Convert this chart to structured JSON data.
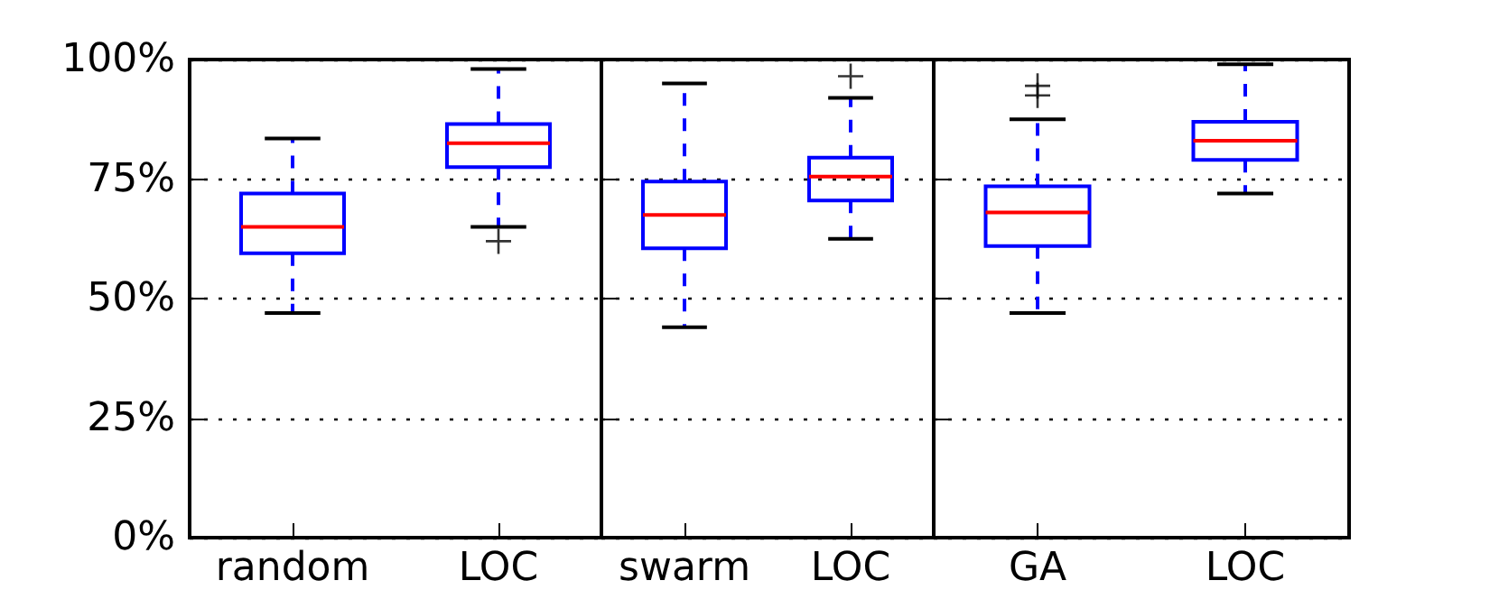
{
  "chart_data": [
    {
      "type": "box",
      "categories": [
        "random",
        "LOC"
      ],
      "ylim": [
        0,
        100
      ],
      "yticks": [
        {
          "value": 0,
          "label": "0%"
        },
        {
          "value": 25,
          "label": "25%"
        },
        {
          "value": 50,
          "label": "50%"
        },
        {
          "value": 75,
          "label": "75%"
        },
        {
          "value": 100,
          "label": "100%"
        }
      ],
      "grid": "y",
      "marker": "cross",
      "series": [
        {
          "color": "#0000ff",
          "boxes": [
            {
              "low": 47,
              "q1": 59.5,
              "median": 65,
              "q3": 72,
              "high": 83.5
            },
            {
              "low": 65,
              "q1": 77.5,
              "median": 82.5,
              "q3": 86.5,
              "high": 98,
              "outliers": [
                62
              ]
            }
          ]
        }
      ]
    },
    {
      "type": "box",
      "categories": [
        "swarm",
        "LOC"
      ],
      "ylim": [
        0,
        100
      ],
      "yticks": [
        0,
        25,
        50,
        75,
        100
      ],
      "grid": "y",
      "marker": "cross",
      "tick_labels": "x",
      "series": [
        {
          "color": "#0000ff",
          "boxes": [
            {
              "low": 44,
              "q1": 60.5,
              "median": 67.5,
              "q3": 74.5,
              "high": 95
            },
            {
              "low": 62.5,
              "q1": 70.5,
              "median": 75.5,
              "q3": 79.5,
              "high": 92,
              "outliers": [
                96.5
              ]
            }
          ]
        }
      ]
    },
    {
      "type": "box",
      "categories": [
        "GA",
        "LOC"
      ],
      "ylim": [
        0,
        100
      ],
      "yticks": [
        0,
        25,
        50,
        75,
        100
      ],
      "grid": "y",
      "marker": "cross",
      "tick_labels": "x",
      "series": [
        {
          "color": "#0000ff",
          "boxes": [
            {
              "low": 47,
              "q1": 61,
              "median": 68,
              "q3": 73.5,
              "high": 87.5,
              "outliers": [
                92.5,
                94.5
              ]
            },
            {
              "low": 72,
              "q1": 79,
              "median": 83,
              "q3": 87,
              "high": 99
            }
          ]
        }
      ]
    }
  ]
}
